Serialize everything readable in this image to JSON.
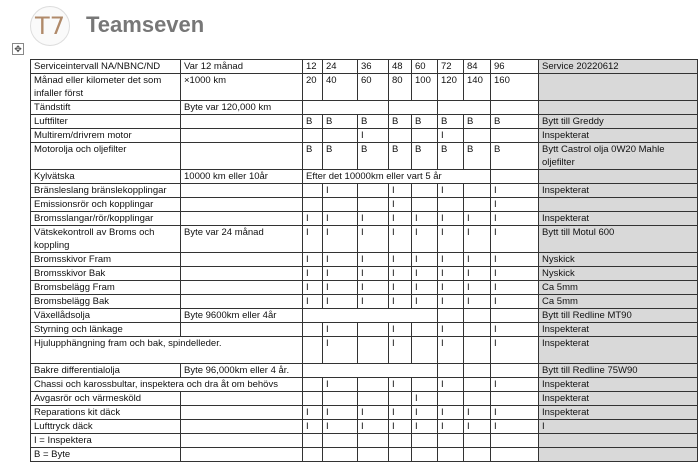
{
  "header": {
    "logo_text": "T7",
    "brand": "Teamseven"
  },
  "table": {
    "rows": [
      {
        "label": "Serviceintervall NA/NBNC/ND",
        "note": "Var 12 månad",
        "marks": [
          "12",
          "24",
          "36",
          "48",
          "60",
          "72",
          "84",
          "96"
        ],
        "service": "Service 20220612"
      },
      {
        "label": "Månad eller kilometer det som infaller först",
        "note": "×1000 km",
        "marks": [
          "20",
          "40",
          "60",
          "80",
          "100",
          "120",
          "140",
          "160"
        ],
        "service": ""
      },
      {
        "label": "Tändstift",
        "note": "Byte var 120,000 km",
        "marks": [
          "",
          "",
          "",
          ""
        ],
        "service": ""
      },
      {
        "label": "Luftfilter",
        "note": "",
        "marks": [
          "B",
          "B",
          "B",
          "B",
          "B",
          "B",
          "B",
          "B"
        ],
        "service": "Bytt till Greddy"
      },
      {
        "label": "Multirem/drivrem motor",
        "note": "",
        "marks": [
          "",
          "",
          "I",
          "",
          "",
          "I",
          "",
          ""
        ],
        "service": "Inspekterat"
      },
      {
        "label": "Motorolja och oljefilter",
        "note": "",
        "marks": [
          "B",
          "B",
          "B",
          "B",
          "B",
          "B",
          "B",
          "B"
        ],
        "service": "Bytt Castrol olja 0W20 Mahle oljefilter"
      },
      {
        "label": "Kylvätska",
        "note": "10000 km eller 10år",
        "marks": [
          "Efter det 10000km eller vart 5 år",
          ""
        ],
        "service": ""
      },
      {
        "label": "Bränsleslang bränslekopplingar",
        "note": "",
        "marks": [
          "",
          "I",
          "",
          "I",
          "",
          "I",
          "",
          "I"
        ],
        "service": "Inspekterat"
      },
      {
        "label": "Emissionsrör och kopplingar",
        "note": "",
        "marks": [
          "",
          "",
          "",
          "I",
          "",
          "",
          "",
          "I"
        ],
        "service": ""
      },
      {
        "label": "Bromsslangar/rör/kopplingar",
        "note": "",
        "marks": [
          "I",
          "I",
          "I",
          "I",
          "I",
          "I",
          "I",
          "I"
        ],
        "service": "Inspekterat"
      },
      {
        "label": "Vätskekontroll av Broms och koppling",
        "note": "Byte var 24 månad",
        "marks": [
          "I",
          "I",
          "I",
          "I",
          "I",
          "I",
          "I",
          "I"
        ],
        "service": "Bytt till Motul 600"
      },
      {
        "label": "Bromsskivor Fram",
        "note": "",
        "marks": [
          "I",
          "I",
          "I",
          "I",
          "I",
          "I",
          "I",
          "I"
        ],
        "service": "Nyskick"
      },
      {
        "label": "Bromsskivor Bak",
        "note": "",
        "marks": [
          "I",
          "I",
          "I",
          "I",
          "I",
          "I",
          "I",
          "I"
        ],
        "service": "Nyskick"
      },
      {
        "label": "Bromsbelägg Fram",
        "note": "",
        "marks": [
          "I",
          "I",
          "I",
          "I",
          "I",
          "I",
          "I",
          "I"
        ],
        "service": "Ca 5mm"
      },
      {
        "label": "Bromsbelägg Bak",
        "note": "",
        "marks": [
          "I",
          "I",
          "I",
          "I",
          "I",
          "I",
          "I",
          "I"
        ],
        "service": "Ca 5mm"
      },
      {
        "label": "Växellådsolja",
        "note": "Byte 9600km eller 4år",
        "marks": [
          "",
          "",
          "",
          ""
        ],
        "service": "Bytt till Redline MT90"
      },
      {
        "label": "Styrning och länkage",
        "note": "",
        "marks": [
          "",
          "I",
          "",
          "I",
          "",
          "I",
          "",
          "I"
        ],
        "service": "Inspekterat"
      },
      {
        "label": "Hjulupphängning fram och bak, spindelleder.",
        "marks": [
          "",
          "I",
          "",
          "I",
          "",
          "I",
          "",
          "I"
        ],
        "service": "Inspekterat"
      },
      {
        "label": "Bakre differentialolja",
        "note": "Byte 96,000km eller 4 år.",
        "marks": [
          "",
          "",
          "",
          ""
        ],
        "service": "Bytt till Redline 75W90"
      },
      {
        "label": "Chassi och karossbultar, inspektera och dra åt om behövs",
        "marks": [
          "",
          "I",
          "",
          "I",
          "",
          "I",
          "",
          "I"
        ],
        "service": "Inspekterat"
      },
      {
        "label": "Avgasrör och värmesköld",
        "note": "",
        "marks": [
          "",
          "",
          "",
          "",
          "I",
          "",
          "",
          ""
        ],
        "service": "Inspekterat"
      },
      {
        "label": "Reparations kit däck",
        "note": "",
        "marks": [
          "I",
          "I",
          "I",
          "I",
          "I",
          "I",
          "I",
          "I"
        ],
        "service": "Inspekterat"
      },
      {
        "label": "Lufttryck däck",
        "note": "",
        "marks": [
          "I",
          "I",
          "I",
          "I",
          "I",
          "I",
          "I",
          "I"
        ],
        "service": "I"
      },
      {
        "label": "I = Inspektera",
        "note": "",
        "marks": [
          "",
          "",
          "",
          "",
          "",
          "",
          "",
          ""
        ],
        "service": ""
      },
      {
        "label": "B = Byte",
        "note": "",
        "marks": [
          "",
          "",
          "",
          "",
          "",
          "",
          "",
          ""
        ],
        "service": ""
      }
    ]
  }
}
